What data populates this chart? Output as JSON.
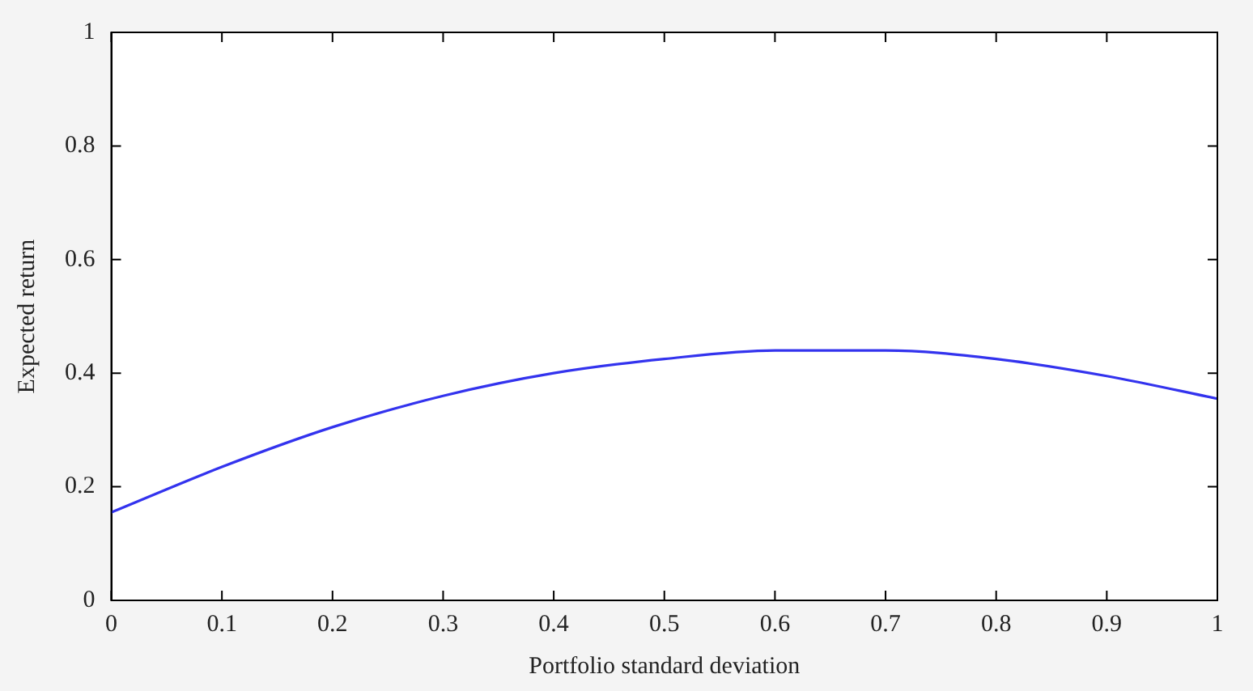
{
  "chart_data": {
    "type": "line",
    "xlabel": "Portfolio standard deviation",
    "ylabel": "Expected return",
    "x": [
      0,
      0.1,
      0.2,
      0.3,
      0.4,
      0.5,
      0.6,
      0.65,
      0.7,
      0.8,
      0.9,
      1
    ],
    "series": [
      {
        "color": "#3333ee",
        "values": [
          0.155,
          0.235,
          0.305,
          0.36,
          0.4,
          0.425,
          0.44,
          0.44,
          0.44,
          0.425,
          0.395,
          0.355
        ]
      }
    ],
    "xlim": [
      0,
      1
    ],
    "xticks": [
      0,
      0.1,
      0.2,
      0.3,
      0.4,
      0.5,
      0.6,
      0.7,
      0.8,
      0.9,
      1
    ],
    "ylim": [
      0,
      1
    ],
    "yticks": [
      0,
      0.2,
      0.4,
      0.6,
      0.8,
      1
    ],
    "grid": false,
    "legend": false,
    "marker": "none",
    "line_style": "solid"
  }
}
